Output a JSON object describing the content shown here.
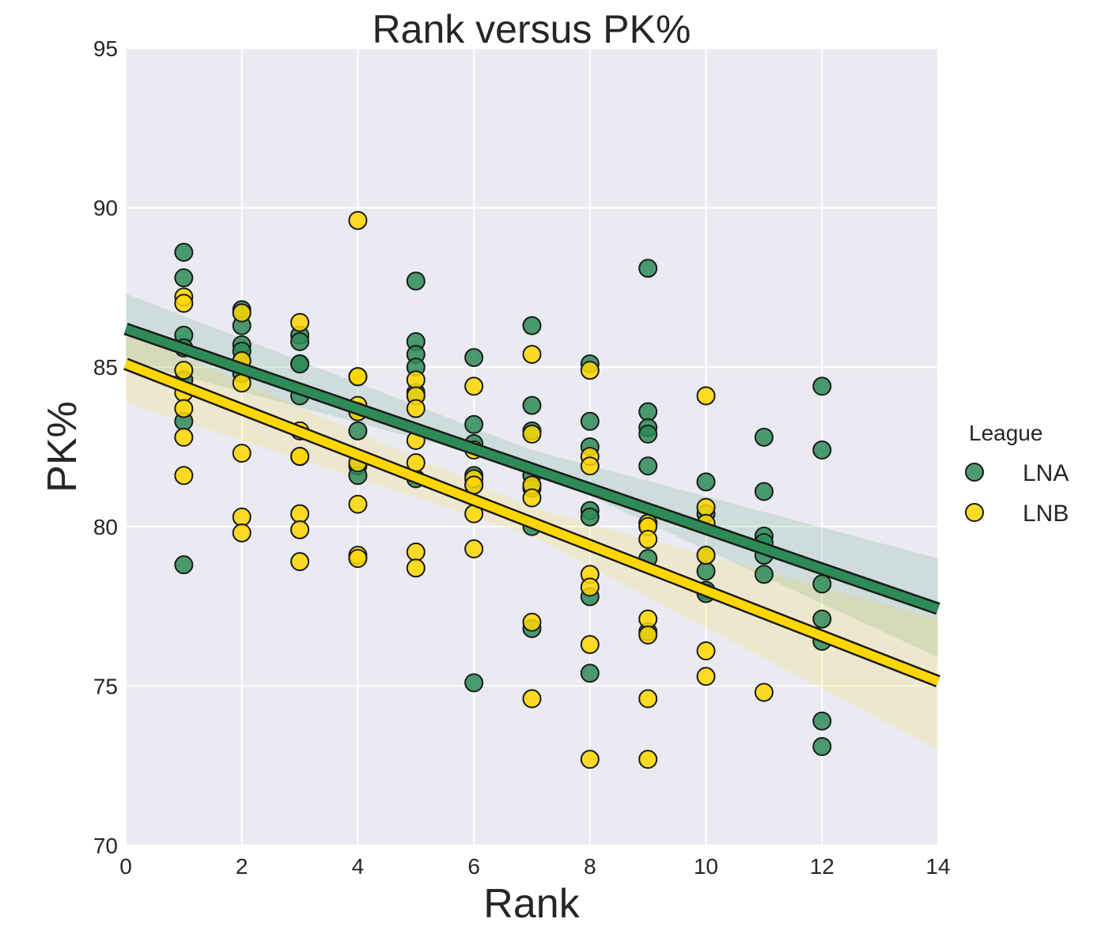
{
  "chart_data": {
    "type": "scatter",
    "title": "Rank versus PK%",
    "xlabel": "Rank",
    "ylabel": "PK%",
    "xlim": [
      0,
      14
    ],
    "ylim": [
      70,
      95
    ],
    "xticks": [
      0,
      2,
      4,
      6,
      8,
      10,
      12,
      14
    ],
    "yticks": [
      70,
      75,
      80,
      85,
      90,
      95
    ],
    "grid": true,
    "legend_title": "League",
    "legend_position": "right",
    "colors": {
      "background": "#eaeaf2",
      "grid": "#ffffff",
      "LNA": "#2e8b57",
      "LNB": "#ffd700",
      "edge": "#1a1a1a"
    },
    "series": [
      {
        "name": "LNA",
        "color": "#2e8b57",
        "points": [
          [
            1,
            88.6
          ],
          [
            1,
            87.8
          ],
          [
            1,
            86.0
          ],
          [
            1,
            85.6
          ],
          [
            1,
            84.6
          ],
          [
            1,
            83.3
          ],
          [
            1,
            78.8
          ],
          [
            2,
            86.8
          ],
          [
            2,
            86.7
          ],
          [
            2,
            86.3
          ],
          [
            2,
            85.7
          ],
          [
            2,
            85.5
          ],
          [
            2,
            85.2
          ],
          [
            2,
            84.8
          ],
          [
            3,
            86.0
          ],
          [
            3,
            85.8
          ],
          [
            3,
            85.1
          ],
          [
            3,
            85.1
          ],
          [
            3,
            84.1
          ],
          [
            4,
            84.7
          ],
          [
            4,
            83.6
          ],
          [
            4,
            83.0
          ],
          [
            4,
            81.9
          ],
          [
            4,
            81.6
          ],
          [
            5,
            87.7
          ],
          [
            5,
            85.8
          ],
          [
            5,
            85.4
          ],
          [
            5,
            85.0
          ],
          [
            5,
            84.2
          ],
          [
            5,
            81.5
          ],
          [
            6,
            85.3
          ],
          [
            6,
            83.2
          ],
          [
            6,
            82.6
          ],
          [
            6,
            81.6
          ],
          [
            6,
            81.3
          ],
          [
            6,
            75.1
          ],
          [
            7,
            86.3
          ],
          [
            7,
            83.8
          ],
          [
            7,
            83.0
          ],
          [
            7,
            81.6
          ],
          [
            7,
            81.2
          ],
          [
            7,
            80.0
          ],
          [
            7,
            76.8
          ],
          [
            8,
            85.1
          ],
          [
            8,
            83.3
          ],
          [
            8,
            82.5
          ],
          [
            8,
            80.5
          ],
          [
            8,
            80.3
          ],
          [
            8,
            77.8
          ],
          [
            8,
            75.4
          ],
          [
            9,
            88.1
          ],
          [
            9,
            83.6
          ],
          [
            9,
            83.1
          ],
          [
            9,
            82.9
          ],
          [
            9,
            81.9
          ],
          [
            9,
            80.1
          ],
          [
            9,
            79.0
          ],
          [
            9,
            76.7
          ],
          [
            10,
            81.4
          ],
          [
            10,
            80.4
          ],
          [
            10,
            79.1
          ],
          [
            10,
            78.6
          ],
          [
            10,
            78.0
          ],
          [
            10,
            77.9
          ],
          [
            11,
            82.8
          ],
          [
            11,
            81.1
          ],
          [
            11,
            79.7
          ],
          [
            11,
            79.5
          ],
          [
            11,
            79.1
          ],
          [
            11,
            78.5
          ],
          [
            12,
            84.4
          ],
          [
            12,
            82.4
          ],
          [
            12,
            78.2
          ],
          [
            12,
            77.1
          ],
          [
            12,
            76.4
          ],
          [
            12,
            73.9
          ],
          [
            12,
            73.1
          ]
        ],
        "fit": {
          "intercept": 86.2,
          "slope": -0.627
        },
        "ci_band": {
          "x": [
            0,
            7,
            14
          ],
          "lower": [
            85.2,
            81.8,
            75.9
          ],
          "upper": [
            87.3,
            82.4,
            79.0
          ]
        }
      },
      {
        "name": "LNB",
        "color": "#ffd700",
        "points": [
          [
            1,
            87.2
          ],
          [
            1,
            87.0
          ],
          [
            1,
            84.9
          ],
          [
            1,
            84.2
          ],
          [
            1,
            83.7
          ],
          [
            1,
            82.8
          ],
          [
            1,
            81.6
          ],
          [
            2,
            86.7
          ],
          [
            2,
            85.2
          ],
          [
            2,
            84.5
          ],
          [
            2,
            82.3
          ],
          [
            2,
            80.3
          ],
          [
            2,
            79.8
          ],
          [
            3,
            86.4
          ],
          [
            3,
            83.0
          ],
          [
            3,
            82.2
          ],
          [
            3,
            82.2
          ],
          [
            3,
            80.4
          ],
          [
            3,
            79.9
          ],
          [
            3,
            78.9
          ],
          [
            4,
            89.6
          ],
          [
            4,
            84.7
          ],
          [
            4,
            84.7
          ],
          [
            4,
            83.8
          ],
          [
            4,
            83.6
          ],
          [
            4,
            82.0
          ],
          [
            4,
            80.7
          ],
          [
            4,
            79.1
          ],
          [
            4,
            79.0
          ],
          [
            5,
            84.6
          ],
          [
            5,
            84.1
          ],
          [
            5,
            83.7
          ],
          [
            5,
            82.7
          ],
          [
            5,
            82.0
          ],
          [
            5,
            79.2
          ],
          [
            5,
            78.7
          ],
          [
            6,
            84.4
          ],
          [
            6,
            82.4
          ],
          [
            6,
            81.5
          ],
          [
            6,
            81.3
          ],
          [
            6,
            80.4
          ],
          [
            6,
            79.3
          ],
          [
            7,
            85.4
          ],
          [
            7,
            82.9
          ],
          [
            7,
            81.3
          ],
          [
            7,
            80.9
          ],
          [
            7,
            77.0
          ],
          [
            7,
            74.6
          ],
          [
            8,
            84.9
          ],
          [
            8,
            82.2
          ],
          [
            8,
            81.9
          ],
          [
            8,
            78.5
          ],
          [
            8,
            78.1
          ],
          [
            8,
            76.3
          ],
          [
            8,
            72.7
          ],
          [
            9,
            80.1
          ],
          [
            9,
            80.0
          ],
          [
            9,
            79.6
          ],
          [
            9,
            77.1
          ],
          [
            9,
            76.6
          ],
          [
            9,
            74.6
          ],
          [
            9,
            72.7
          ],
          [
            10,
            84.1
          ],
          [
            10,
            80.6
          ],
          [
            10,
            80.1
          ],
          [
            10,
            79.1
          ],
          [
            10,
            76.1
          ],
          [
            10,
            75.3
          ],
          [
            11,
            74.8
          ]
        ],
        "fit": {
          "intercept": 85.1,
          "slope": -0.711
        },
        "ci_band": {
          "x": [
            0,
            7,
            14
          ],
          "lower": [
            83.9,
            79.7,
            73.0
          ],
          "upper": [
            86.1,
            80.6,
            77.1
          ]
        }
      }
    ]
  }
}
